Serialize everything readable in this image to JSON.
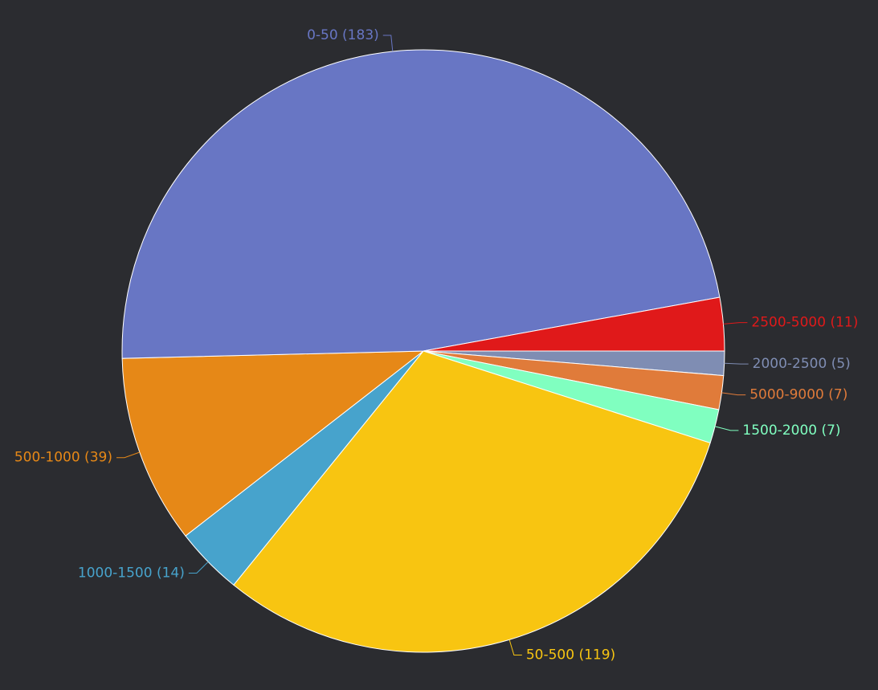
{
  "chart_data": {
    "type": "pie",
    "categories": [
      "2000-2500 (5)",
      "5000-9000 (7)",
      "1500-2000 (7)",
      "50-500 (119)",
      "1000-1500 (14)",
      "500-1000 (39)",
      "0-50 (183)",
      "2500-5000 (11)"
    ],
    "values": [
      5,
      7,
      7,
      119,
      14,
      39,
      183,
      11
    ],
    "colors": [
      "#7f8db3",
      "#e07b3a",
      "#80ffc0",
      "#f8c511",
      "#47a3cc",
      "#e68817",
      "#6876c4",
      "#e0191a"
    ]
  }
}
